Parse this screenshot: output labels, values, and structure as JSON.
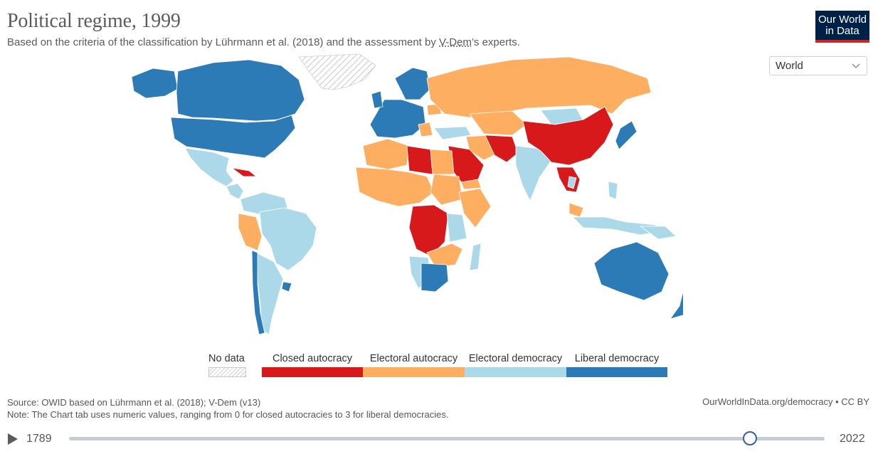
{
  "header": {
    "title": "Political regime, 1999",
    "subtitle_before": "Based on the criteria of the classification by Lührmann et al. (2018) and the assessment by ",
    "subtitle_link": "V-Dem",
    "subtitle_after": "’s experts.",
    "logo_line1": "Our World",
    "logo_line2": "in Data"
  },
  "region_select": {
    "value": "World",
    "icon": "chevron-down-icon"
  },
  "colors": {
    "closed_autocracy": "#d7191c",
    "electoral_autocracy": "#fdae61",
    "electoral_democracy": "#abd9e9",
    "liberal_democracy": "#2c7bb6",
    "no_data": "hatched"
  },
  "legend": {
    "no_data": "No data",
    "items": [
      "Closed autocracy",
      "Electoral autocracy",
      "Electoral democracy",
      "Liberal democracy"
    ]
  },
  "footer": {
    "source": "Source: OWID based on Lührmann et al. (2018); V-Dem (v13)",
    "note": "Note: The Chart tab uses numeric values, ranging from 0 for closed autocracies to 3 for liberal democracies.",
    "url": "OurWorldInData.org/democracy",
    "license": "CC BY"
  },
  "timeline": {
    "start_year": "1789",
    "end_year": "2022",
    "selected_year": 1999,
    "play_icon": "play-icon"
  }
}
